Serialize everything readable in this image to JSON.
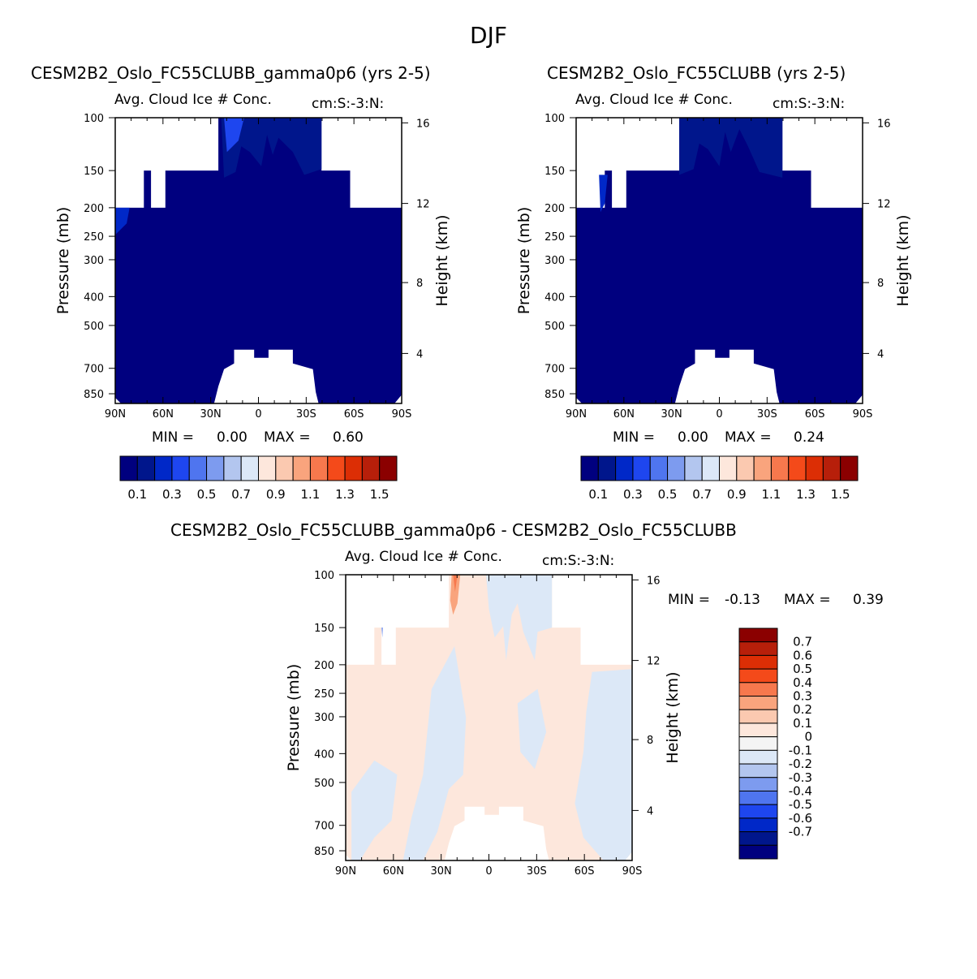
{
  "main_title": "DJF",
  "colors": {
    "abs_levels": [
      "#00007f",
      "#00168c",
      "#0028c8",
      "#1e46ef",
      "#4f75ef",
      "#7d9bef",
      "#b3c6ef",
      "#dce8f7",
      "#fde7dc",
      "#fbc9b0",
      "#f9a47d",
      "#f7784d",
      "#f44a1a",
      "#dc2e05",
      "#b71f0a",
      "#8b0000"
    ],
    "diff_levels": [
      "#00007f",
      "#00168c",
      "#0028c8",
      "#1e46ef",
      "#4f75ef",
      "#7d9bef",
      "#b3c6ef",
      "#dce8f7",
      "#f4f4f4",
      "#fde7dc",
      "#fbc9b0",
      "#f9a47d",
      "#f7784d",
      "#f44a1a",
      "#dc2e05",
      "#b71f0a",
      "#8b0000"
    ],
    "missing": "#ffffff"
  },
  "chart_data": [
    {
      "id": "panel1",
      "type": "contour",
      "title": "CESM2B2_Oslo_FC55CLUBB_gamma0p6 (yrs 2-5)",
      "subtitle_left": "Avg. Cloud Ice # Conc.",
      "subtitle_right": "cm:S:-3:N:",
      "xlabel": "",
      "ylabel": "Pressure (mb)",
      "ylabel_right": "Height (km)",
      "x_ticks": [
        "90N",
        "60N",
        "30N",
        "0",
        "30S",
        "60S",
        "90S"
      ],
      "y_ticks": [
        "100",
        "150",
        "200",
        "250",
        "300",
        "400",
        "500",
        "700",
        "850"
      ],
      "y_right_ticks": [
        "16",
        "12",
        "8",
        "4"
      ],
      "ylim": [
        1000,
        100
      ],
      "min_label": "MIN =",
      "min_value": "0.00",
      "max_label": "MAX =",
      "max_value": "0.60",
      "colorbar_labels": [
        "0.1",
        "0.3",
        "0.5",
        "0.7",
        "0.9",
        "1.1",
        "1.3",
        "1.5"
      ],
      "min": 0.0,
      "max": 0.6
    },
    {
      "id": "panel2",
      "type": "contour",
      "title": "CESM2B2_Oslo_FC55CLUBB (yrs 2-5)",
      "subtitle_left": "Avg. Cloud Ice # Conc.",
      "subtitle_right": "cm:S:-3:N:",
      "xlabel": "",
      "ylabel": "Pressure (mb)",
      "ylabel_right": "Height (km)",
      "x_ticks": [
        "90N",
        "60N",
        "30N",
        "0",
        "30S",
        "60S",
        "90S"
      ],
      "y_ticks": [
        "100",
        "150",
        "200",
        "250",
        "300",
        "400",
        "500",
        "700",
        "850"
      ],
      "y_right_ticks": [
        "16",
        "12",
        "8",
        "4"
      ],
      "ylim": [
        1000,
        100
      ],
      "min_label": "MIN =",
      "min_value": "0.00",
      "max_label": "MAX =",
      "max_value": "0.24",
      "colorbar_labels": [
        "0.1",
        "0.3",
        "0.5",
        "0.7",
        "0.9",
        "1.1",
        "1.3",
        "1.5"
      ],
      "min": 0.0,
      "max": 0.24
    },
    {
      "id": "panel3",
      "type": "contour",
      "title": "CESM2B2_Oslo_FC55CLUBB_gamma0p6 - CESM2B2_Oslo_FC55CLUBB",
      "subtitle_left": "Avg. Cloud Ice # Conc.",
      "subtitle_right": "cm:S:-3:N:",
      "xlabel": "",
      "ylabel": "Pressure (mb)",
      "ylabel_right": "Height (km)",
      "x_ticks": [
        "90N",
        "60N",
        "30N",
        "0",
        "30S",
        "60S",
        "90S"
      ],
      "y_ticks": [
        "100",
        "150",
        "200",
        "250",
        "300",
        "400",
        "500",
        "700",
        "850"
      ],
      "y_right_ticks": [
        "16",
        "12",
        "8",
        "4"
      ],
      "ylim": [
        1000,
        100
      ],
      "min_label": "MIN =",
      "min_value": "-0.13",
      "max_label": "MAX =",
      "max_value": "0.39",
      "colorbar_labels": [
        "0.7",
        "0.6",
        "0.5",
        "0.4",
        "0.3",
        "0.2",
        "0.1",
        "0",
        "-0.1",
        "-0.2",
        "-0.3",
        "-0.4",
        "-0.5",
        "-0.6",
        "-0.7"
      ],
      "min": -0.13,
      "max": 0.39
    }
  ]
}
